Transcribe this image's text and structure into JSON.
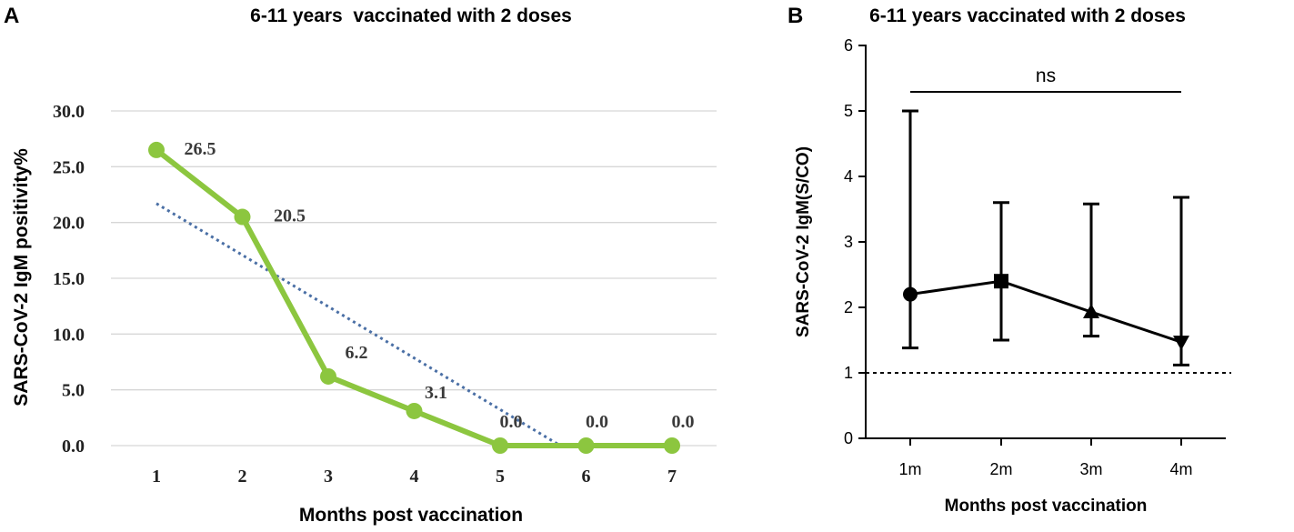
{
  "panels": {
    "a": {
      "letter": "A"
    },
    "b": {
      "letter": "B"
    }
  },
  "chart_data": [
    {
      "type": "line",
      "title": "6-11 years  vaccinated with 2 doses",
      "xlabel": "Months post vaccination",
      "ylabel": "SARS-CoV-2 IgM positivity%",
      "x": [
        1,
        2,
        3,
        4,
        5,
        6,
        7
      ],
      "xticks": [
        "1",
        "2",
        "3",
        "4",
        "5",
        "6",
        "7"
      ],
      "yticks": [
        "0.0",
        "5.0",
        "10.0",
        "15.0",
        "20.0",
        "25.0",
        "30.0"
      ],
      "ylim": [
        0,
        30
      ],
      "grid": true,
      "series": [
        {
          "name": "IgM positivity",
          "values": [
            26.5,
            20.5,
            6.2,
            3.1,
            0.0,
            0.0,
            0.0
          ],
          "labels": [
            "26.5",
            "20.5",
            "6.2",
            "3.1",
            "0.0",
            "0.0",
            "0.0"
          ],
          "color": "#8cc63f"
        }
      ],
      "trendline": {
        "style": "dotted",
        "color": "#4a6fa5",
        "x": [
          1,
          5.7
        ],
        "y": [
          21.7,
          0.0
        ]
      }
    },
    {
      "type": "line",
      "title": "6-11 years vaccinated with 2 doses",
      "xlabel": "Months post vaccination",
      "ylabel": "SARS-CoV-2 IgM(S/CO)",
      "categories": [
        "1m",
        "2m",
        "3m",
        "4m"
      ],
      "yticks": [
        "0",
        "1",
        "2",
        "3",
        "4",
        "5",
        "6"
      ],
      "ylim": [
        0,
        6
      ],
      "series": [
        {
          "name": "IgM S/CO",
          "values": [
            2.2,
            2.4,
            1.93,
            1.47
          ],
          "error_low": [
            1.38,
            1.5,
            1.56,
            1.12
          ],
          "error_high": [
            5.0,
            3.6,
            3.58,
            3.68
          ],
          "markers": [
            "circle",
            "square",
            "triangle-up",
            "triangle-down"
          ],
          "color": "#000000"
        }
      ],
      "cutoff": {
        "value": 1.0,
        "style": "dotted"
      },
      "significance": {
        "label": "ns",
        "from": "1m",
        "to": "4m"
      }
    }
  ]
}
